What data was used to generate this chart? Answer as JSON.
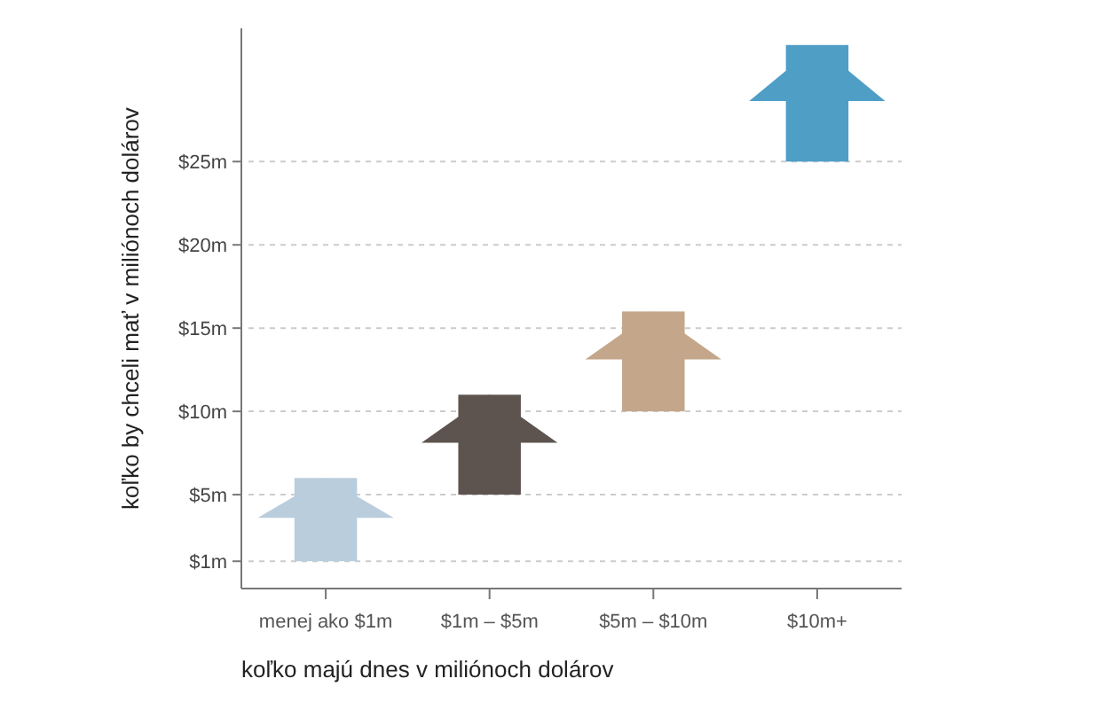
{
  "chart_data": {
    "type": "bar",
    "xlabel": "koľko majú dnes v miliónoch dolárov",
    "ylabel": "koľko by chceli mať v miliónoch dolárov",
    "categories": [
      "menej ako $1m",
      "$1m – $5m",
      "$5m – $10m",
      "$10m+"
    ],
    "base": [
      1,
      5,
      10,
      25
    ],
    "values": [
      5,
      6,
      6,
      7
    ],
    "colors": [
      "#b9cddd",
      "#5e544f",
      "#c4a68a",
      "#4e9ec6"
    ],
    "ylim": [
      0,
      33
    ],
    "yticks": [
      {
        "value": 1,
        "label": "$1m"
      },
      {
        "value": 5,
        "label": "$5m"
      },
      {
        "value": 10,
        "label": "$10m"
      },
      {
        "value": 15,
        "label": "$15m"
      },
      {
        "value": 20,
        "label": "$20m"
      },
      {
        "value": 25,
        "label": "$25m"
      }
    ],
    "grid": "y"
  }
}
